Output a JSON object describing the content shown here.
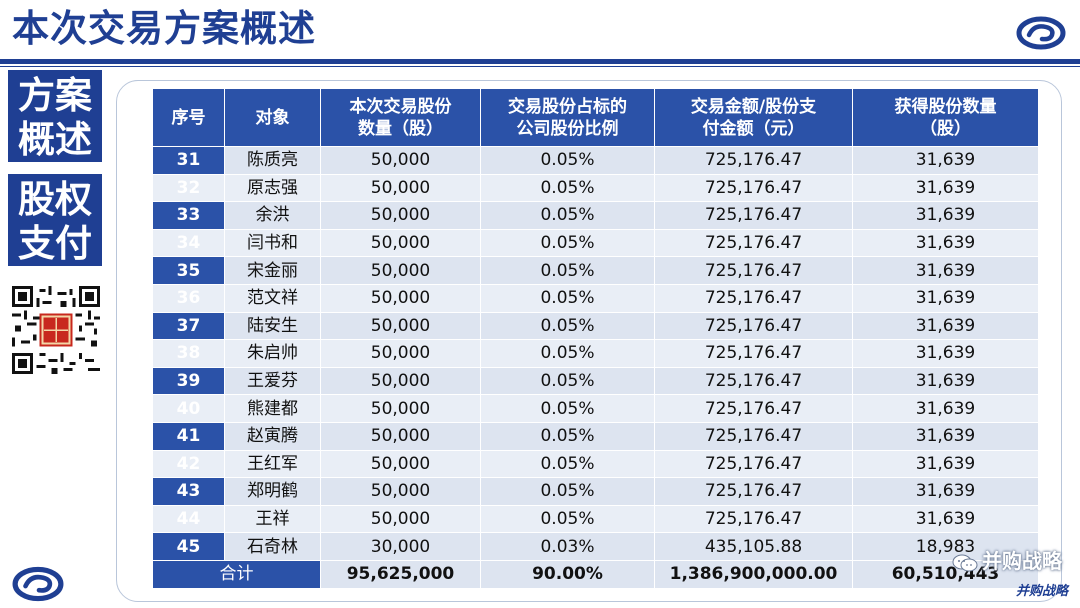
{
  "title": "本次交易方案概述",
  "side": {
    "box1": [
      "方案",
      "概述"
    ],
    "box2": [
      "股权",
      "支付"
    ]
  },
  "table": {
    "headers": [
      [
        "序号"
      ],
      [
        "对象"
      ],
      [
        "本次交易股份",
        "数量（股）"
      ],
      [
        "交易股份占标的",
        "公司股份比例"
      ],
      [
        "交易金额/股份支",
        "付金额（元）"
      ],
      [
        "获得股份数量",
        "（股）"
      ]
    ],
    "rows": [
      [
        "31",
        "陈质亮",
        "50,000",
        "0.05%",
        "725,176.47",
        "31,639"
      ],
      [
        "32",
        "原志强",
        "50,000",
        "0.05%",
        "725,176.47",
        "31,639"
      ],
      [
        "33",
        "余洪",
        "50,000",
        "0.05%",
        "725,176.47",
        "31,639"
      ],
      [
        "34",
        "闫书和",
        "50,000",
        "0.05%",
        "725,176.47",
        "31,639"
      ],
      [
        "35",
        "宋金丽",
        "50,000",
        "0.05%",
        "725,176.47",
        "31,639"
      ],
      [
        "36",
        "范文祥",
        "50,000",
        "0.05%",
        "725,176.47",
        "31,639"
      ],
      [
        "37",
        "陆安生",
        "50,000",
        "0.05%",
        "725,176.47",
        "31,639"
      ],
      [
        "38",
        "朱启帅",
        "50,000",
        "0.05%",
        "725,176.47",
        "31,639"
      ],
      [
        "39",
        "王爱芬",
        "50,000",
        "0.05%",
        "725,176.47",
        "31,639"
      ],
      [
        "40",
        "熊建都",
        "50,000",
        "0.05%",
        "725,176.47",
        "31,639"
      ],
      [
        "41",
        "赵寅腾",
        "50,000",
        "0.05%",
        "725,176.47",
        "31,639"
      ],
      [
        "42",
        "王红军",
        "50,000",
        "0.05%",
        "725,176.47",
        "31,639"
      ],
      [
        "43",
        "郑明鹤",
        "50,000",
        "0.05%",
        "725,176.47",
        "31,639"
      ],
      [
        "44",
        "王祥",
        "50,000",
        "0.05%",
        "725,176.47",
        "31,639"
      ],
      [
        "45",
        "石奇林",
        "30,000",
        "0.03%",
        "435,105.88",
        "18,983"
      ]
    ],
    "total": {
      "label": "合计",
      "shares": "95,625,000",
      "ratio": "90.00%",
      "amount": "1,386,900,000.00",
      "obtained": "60,510,443"
    }
  },
  "watermark": {
    "text": "并购战略",
    "brand": "并购战略",
    "icon": "wechat-icon"
  },
  "qr": {
    "icon": "qr-code-icon"
  },
  "logo": {
    "icon": "company-logo-icon"
  },
  "colors": {
    "primary": "#1f3f93",
    "header_fill": "#2b52a8",
    "cell_fill": "#dde4f0",
    "cell_fill_alt": "#e9eef6"
  }
}
